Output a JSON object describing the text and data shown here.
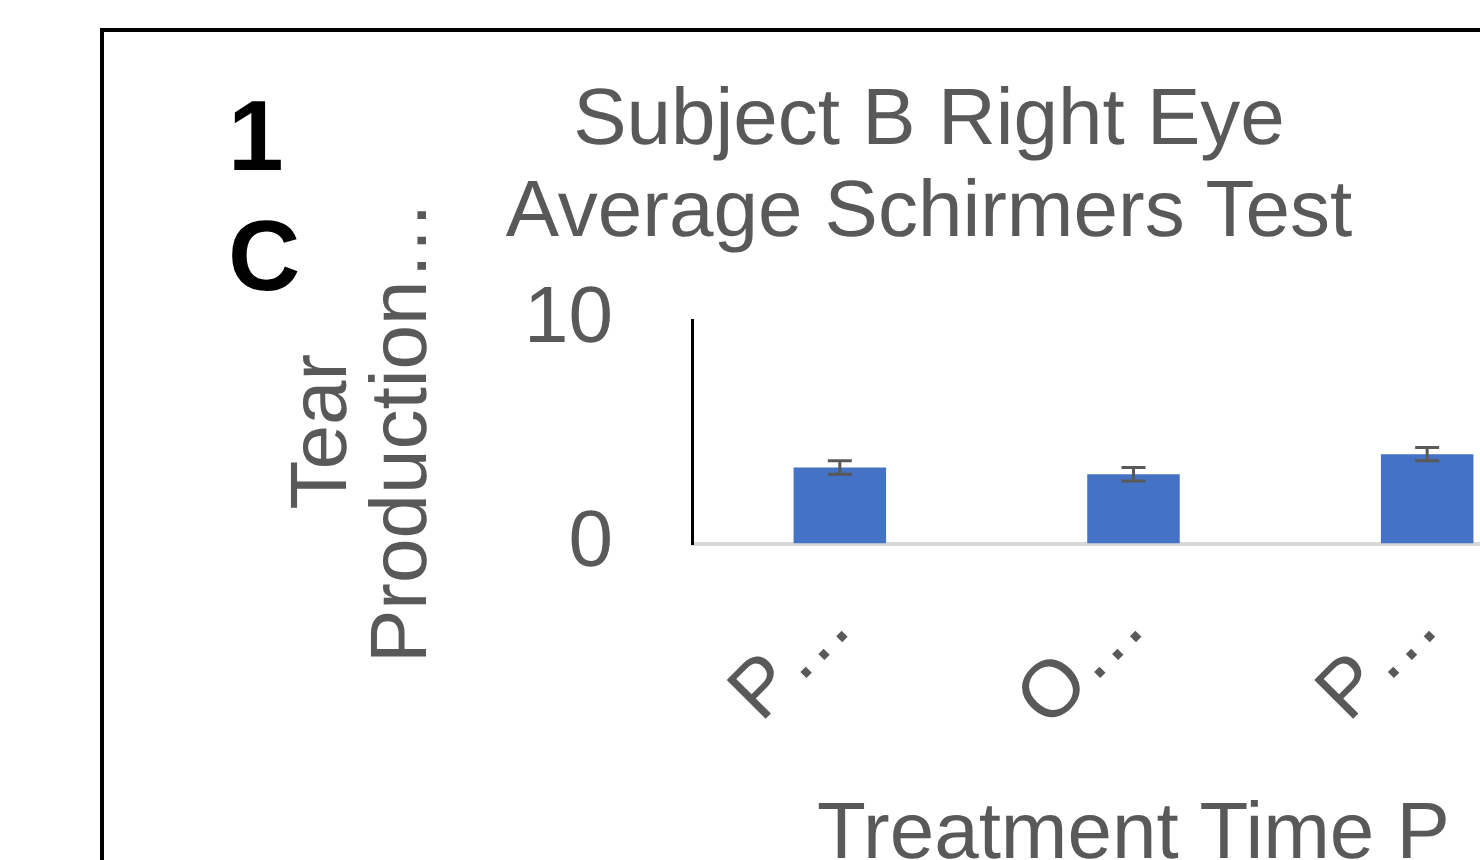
{
  "chart_data": {
    "type": "bar",
    "title": "Subject B Right Eye Average Schirmers Test",
    "xlabel": "Treatment Time P",
    "ylabel": "Tear Production…",
    "annotations": [
      "1",
      "C"
    ],
    "categories": [
      "P…",
      "O…",
      "P…"
    ],
    "values": [
      3.4,
      3.1,
      4.0
    ],
    "errors": [
      0.3,
      0.3,
      0.3
    ],
    "color": "#4472c4",
    "ylim": [
      0,
      10
    ],
    "yticks": [
      0,
      10
    ],
    "grid": false,
    "legend": false
  }
}
